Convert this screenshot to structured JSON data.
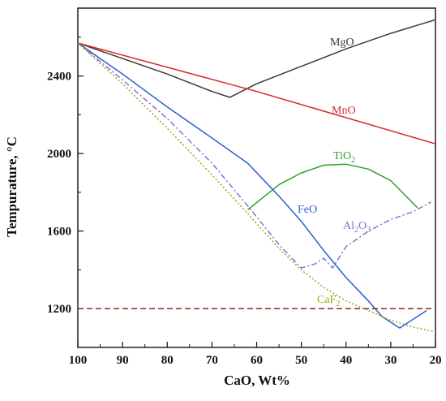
{
  "chart_data": {
    "type": "line",
    "title": "",
    "xlabel": "CaO, Wt%",
    "ylabel": "Tempurature, °C",
    "xlim": [
      100,
      20
    ],
    "ylim": [
      1000,
      2750
    ],
    "x_reversed": true,
    "grid": false,
    "legend": "none (series labelled inline on the plot)",
    "x_ticks": [
      100,
      90,
      80,
      70,
      60,
      50,
      40,
      30,
      20
    ],
    "x_tick_labels": [
      "100",
      "90",
      "80",
      "70",
      "60",
      "50",
      "40",
      "30",
      "20"
    ],
    "y_ticks": [
      1200,
      1600,
      2000,
      2400
    ],
    "y_tick_labels": [
      "1200",
      "1600",
      "2000",
      "2400"
    ],
    "series": [
      {
        "name": "MgO",
        "label_main": "MgO",
        "label_sub": "",
        "color": "#3a3a3a",
        "style": "solid",
        "points": [
          [
            100,
            2570
          ],
          [
            90,
            2490
          ],
          [
            80,
            2410
          ],
          [
            70,
            2320
          ],
          [
            66,
            2290
          ],
          [
            60,
            2360
          ],
          [
            50,
            2450
          ],
          [
            40,
            2540
          ],
          [
            30,
            2620
          ],
          [
            20,
            2690
          ]
        ]
      },
      {
        "name": "MnO",
        "label_main": "MnO",
        "label_sub": "",
        "color": "#d62728",
        "style": "solid",
        "points": [
          [
            100,
            2570
          ],
          [
            60,
            2320
          ],
          [
            20,
            2050
          ]
        ]
      },
      {
        "name": "TiO2",
        "label_main": "TiO",
        "label_sub": "2",
        "color": "#2ca02c",
        "style": "solid",
        "points": [
          [
            62,
            1710
          ],
          [
            55,
            1840
          ],
          [
            50,
            1900
          ],
          [
            45,
            1940
          ],
          [
            40,
            1945
          ],
          [
            35,
            1920
          ],
          [
            30,
            1860
          ],
          [
            24,
            1720
          ]
        ]
      },
      {
        "name": "FeO",
        "label_main": "FeO",
        "label_sub": "",
        "color": "#2b5fcf",
        "style": "solid",
        "points": [
          [
            100,
            2570
          ],
          [
            90,
            2410
          ],
          [
            80,
            2240
          ],
          [
            70,
            2080
          ],
          [
            62,
            1950
          ],
          [
            55,
            1780
          ],
          [
            50,
            1650
          ],
          [
            45,
            1500
          ],
          [
            40,
            1360
          ],
          [
            35,
            1240
          ],
          [
            32,
            1160
          ],
          [
            28,
            1100
          ],
          [
            22,
            1190
          ]
        ]
      },
      {
        "name": "Al2O3",
        "label_main": "Al",
        "label_sub": "2",
        "label_main2": "O",
        "label_sub2": "3",
        "color": "#8a6fd1",
        "style": "dashdot",
        "points": [
          [
            100,
            2570
          ],
          [
            90,
            2380
          ],
          [
            80,
            2180
          ],
          [
            70,
            1950
          ],
          [
            62,
            1730
          ],
          [
            55,
            1530
          ],
          [
            50,
            1410
          ],
          [
            47,
            1430
          ],
          [
            45,
            1460
          ],
          [
            43,
            1410
          ],
          [
            40,
            1520
          ],
          [
            35,
            1600
          ],
          [
            30,
            1660
          ],
          [
            25,
            1700
          ],
          [
            21,
            1750
          ]
        ]
      },
      {
        "name": "CaF2",
        "label_main": "CaF",
        "label_sub": "2",
        "color": "#9aaa17",
        "style": "dotted",
        "points": [
          [
            100,
            2570
          ],
          [
            90,
            2360
          ],
          [
            80,
            2130
          ],
          [
            70,
            1890
          ],
          [
            62,
            1690
          ],
          [
            55,
            1510
          ],
          [
            50,
            1400
          ],
          [
            45,
            1310
          ],
          [
            40,
            1240
          ],
          [
            35,
            1190
          ],
          [
            30,
            1140
          ],
          [
            25,
            1105
          ],
          [
            20,
            1080
          ]
        ]
      },
      {
        "name": "",
        "label_main": "",
        "label_sub": "",
        "color": "#8b2c1a",
        "style": "dashed",
        "points": [
          [
            100,
            1200
          ],
          [
            20,
            1200
          ]
        ]
      }
    ]
  }
}
